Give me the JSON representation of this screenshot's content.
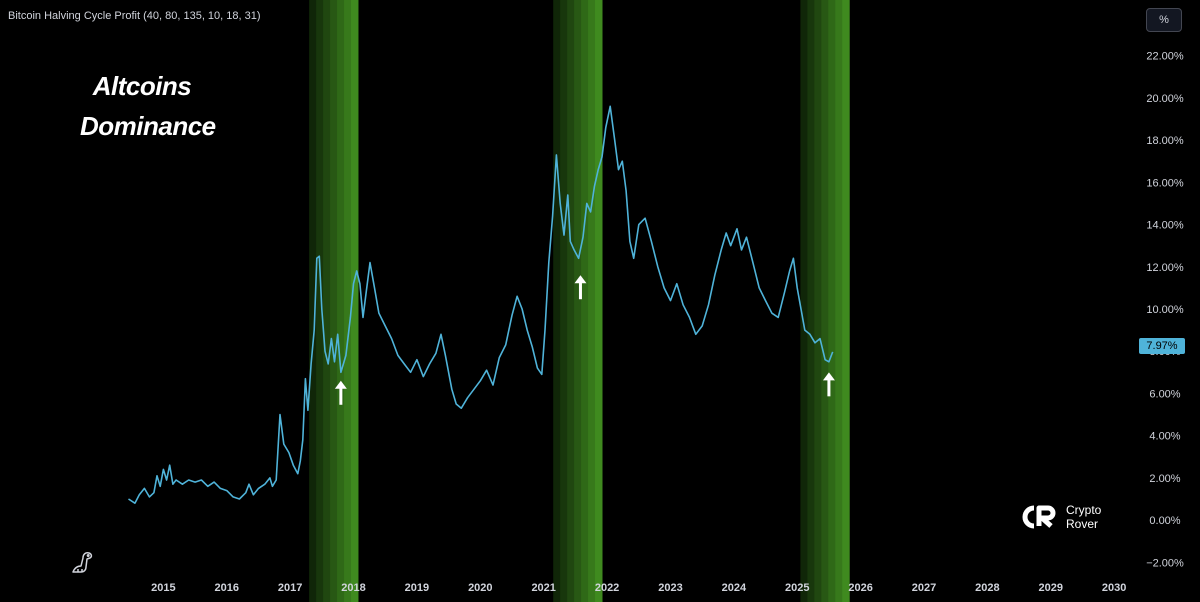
{
  "indicator": {
    "title": "Bitcoin Halving Cycle Profit (40, 80, 135, 10, 18, 31)"
  },
  "overlay_title": {
    "line1": "Altcoins",
    "line2": "Dominance"
  },
  "scale_button": "%",
  "last_value_badge": "7.97%",
  "watermark": {
    "line1": "Crypto",
    "line2": "Rover"
  },
  "colors": {
    "line": "#4fb3d9",
    "band_light": "#3f8a1f",
    "band_dark": "#102608",
    "axis_text": "#d1d4dc",
    "background": "#000000"
  },
  "icons": [
    "tradingview-dino-icon",
    "crypto-rover-logo-icon",
    "up-arrow-icon"
  ],
  "chart_data": {
    "type": "line",
    "title": "Altcoins Dominance",
    "x_axis": {
      "range": [
        2014.0,
        2030.25
      ],
      "ticks": [
        2015,
        2016,
        2017,
        2018,
        2019,
        2020,
        2021,
        2022,
        2023,
        2024,
        2025,
        2026,
        2027,
        2028,
        2029,
        2030
      ],
      "tick_labels": [
        "2015",
        "2016",
        "2017",
        "2018",
        "2019",
        "2020",
        "2021",
        "2022",
        "2023",
        "2024",
        "2025",
        "2026",
        "2027",
        "2028",
        "2029",
        "2030"
      ]
    },
    "y_axis": {
      "range": [
        -2.6,
        24.4
      ],
      "ticks": [
        -2,
        0,
        2,
        4,
        6,
        8,
        10,
        12,
        14,
        16,
        18,
        20,
        22
      ],
      "tick_labels": [
        "−2.00%",
        "0.00%",
        "2.00%",
        "4.00%",
        "6.00%",
        "8.00%",
        "10.00%",
        "12.00%",
        "14.00%",
        "16.00%",
        "18.00%",
        "20.00%",
        "22.00%"
      ],
      "position": "right"
    },
    "grid": false,
    "bands": [
      {
        "start": 2017.3,
        "end": 2018.07
      },
      {
        "start": 2021.15,
        "end": 2021.92
      },
      {
        "start": 2025.05,
        "end": 2025.82
      }
    ],
    "arrows": [
      {
        "x": 2017.8,
        "y": 6.6
      },
      {
        "x": 2021.58,
        "y": 11.6
      },
      {
        "x": 2025.5,
        "y": 7.0
      }
    ],
    "series": [
      {
        "values": [
          [
            2014.45,
            1.0
          ],
          [
            2014.55,
            0.8
          ],
          [
            2014.62,
            1.2
          ],
          [
            2014.7,
            1.5
          ],
          [
            2014.78,
            1.1
          ],
          [
            2014.85,
            1.3
          ],
          [
            2014.9,
            2.1
          ],
          [
            2014.95,
            1.6
          ],
          [
            2015.0,
            2.4
          ],
          [
            2015.05,
            1.9
          ],
          [
            2015.1,
            2.6
          ],
          [
            2015.15,
            1.7
          ],
          [
            2015.2,
            1.9
          ],
          [
            2015.3,
            1.7
          ],
          [
            2015.4,
            1.9
          ],
          [
            2015.5,
            1.8
          ],
          [
            2015.6,
            1.9
          ],
          [
            2015.7,
            1.6
          ],
          [
            2015.8,
            1.8
          ],
          [
            2015.9,
            1.5
          ],
          [
            2016.0,
            1.4
          ],
          [
            2016.1,
            1.1
          ],
          [
            2016.2,
            1.0
          ],
          [
            2016.3,
            1.3
          ],
          [
            2016.35,
            1.7
          ],
          [
            2016.42,
            1.2
          ],
          [
            2016.5,
            1.5
          ],
          [
            2016.6,
            1.7
          ],
          [
            2016.68,
            2.0
          ],
          [
            2016.72,
            1.6
          ],
          [
            2016.78,
            1.9
          ],
          [
            2016.84,
            5.0
          ],
          [
            2016.9,
            3.6
          ],
          [
            2016.98,
            3.2
          ],
          [
            2017.05,
            2.6
          ],
          [
            2017.12,
            2.2
          ],
          [
            2017.16,
            2.8
          ],
          [
            2017.2,
            3.8
          ],
          [
            2017.24,
            6.7
          ],
          [
            2017.28,
            5.2
          ],
          [
            2017.33,
            7.4
          ],
          [
            2017.38,
            9.0
          ],
          [
            2017.42,
            12.4
          ],
          [
            2017.46,
            12.5
          ],
          [
            2017.5,
            10.0
          ],
          [
            2017.55,
            8.0
          ],
          [
            2017.6,
            7.4
          ],
          [
            2017.65,
            8.6
          ],
          [
            2017.7,
            7.5
          ],
          [
            2017.75,
            8.8
          ],
          [
            2017.8,
            7.0
          ],
          [
            2017.88,
            7.8
          ],
          [
            2017.95,
            9.6
          ],
          [
            2018.0,
            11.2
          ],
          [
            2018.05,
            11.8
          ],
          [
            2018.1,
            11.2
          ],
          [
            2018.15,
            9.6
          ],
          [
            2018.2,
            10.8
          ],
          [
            2018.26,
            12.2
          ],
          [
            2018.33,
            11.0
          ],
          [
            2018.4,
            9.8
          ],
          [
            2018.5,
            9.2
          ],
          [
            2018.6,
            8.6
          ],
          [
            2018.7,
            7.8
          ],
          [
            2018.8,
            7.4
          ],
          [
            2018.9,
            7.0
          ],
          [
            2019.0,
            7.6
          ],
          [
            2019.1,
            6.8
          ],
          [
            2019.2,
            7.4
          ],
          [
            2019.3,
            7.9
          ],
          [
            2019.38,
            8.8
          ],
          [
            2019.45,
            7.8
          ],
          [
            2019.55,
            6.2
          ],
          [
            2019.62,
            5.5
          ],
          [
            2019.7,
            5.3
          ],
          [
            2019.8,
            5.8
          ],
          [
            2019.9,
            6.2
          ],
          [
            2020.0,
            6.6
          ],
          [
            2020.1,
            7.1
          ],
          [
            2020.2,
            6.4
          ],
          [
            2020.3,
            7.7
          ],
          [
            2020.4,
            8.3
          ],
          [
            2020.5,
            9.7
          ],
          [
            2020.58,
            10.6
          ],
          [
            2020.66,
            10.0
          ],
          [
            2020.74,
            9.0
          ],
          [
            2020.82,
            8.2
          ],
          [
            2020.9,
            7.2
          ],
          [
            2020.97,
            6.9
          ],
          [
            2021.02,
            9.0
          ],
          [
            2021.08,
            12.2
          ],
          [
            2021.14,
            14.4
          ],
          [
            2021.2,
            17.3
          ],
          [
            2021.26,
            15.0
          ],
          [
            2021.32,
            13.5
          ],
          [
            2021.38,
            15.4
          ],
          [
            2021.42,
            13.2
          ],
          [
            2021.48,
            12.8
          ],
          [
            2021.55,
            12.4
          ],
          [
            2021.62,
            13.4
          ],
          [
            2021.68,
            15.0
          ],
          [
            2021.74,
            14.6
          ],
          [
            2021.8,
            15.8
          ],
          [
            2021.86,
            16.6
          ],
          [
            2021.92,
            17.2
          ],
          [
            2021.98,
            18.6
          ],
          [
            2022.05,
            19.6
          ],
          [
            2022.12,
            18.0
          ],
          [
            2022.18,
            16.6
          ],
          [
            2022.24,
            17.0
          ],
          [
            2022.3,
            15.6
          ],
          [
            2022.36,
            13.2
          ],
          [
            2022.42,
            12.4
          ],
          [
            2022.5,
            14.0
          ],
          [
            2022.6,
            14.3
          ],
          [
            2022.7,
            13.2
          ],
          [
            2022.8,
            12.0
          ],
          [
            2022.9,
            11.0
          ],
          [
            2023.0,
            10.4
          ],
          [
            2023.1,
            11.2
          ],
          [
            2023.2,
            10.2
          ],
          [
            2023.3,
            9.6
          ],
          [
            2023.4,
            8.8
          ],
          [
            2023.5,
            9.2
          ],
          [
            2023.6,
            10.2
          ],
          [
            2023.7,
            11.6
          ],
          [
            2023.8,
            12.8
          ],
          [
            2023.88,
            13.6
          ],
          [
            2023.95,
            13.0
          ],
          [
            2024.05,
            13.8
          ],
          [
            2024.12,
            12.8
          ],
          [
            2024.2,
            13.4
          ],
          [
            2024.3,
            12.2
          ],
          [
            2024.4,
            11.0
          ],
          [
            2024.5,
            10.4
          ],
          [
            2024.6,
            9.8
          ],
          [
            2024.7,
            9.6
          ],
          [
            2024.8,
            10.8
          ],
          [
            2024.88,
            11.8
          ],
          [
            2024.94,
            12.4
          ],
          [
            2025.0,
            11.0
          ],
          [
            2025.06,
            10.0
          ],
          [
            2025.12,
            9.0
          ],
          [
            2025.2,
            8.8
          ],
          [
            2025.28,
            8.4
          ],
          [
            2025.36,
            8.6
          ],
          [
            2025.44,
            7.6
          ],
          [
            2025.5,
            7.5
          ],
          [
            2025.56,
            7.97
          ]
        ]
      }
    ],
    "last_value": 7.97
  }
}
